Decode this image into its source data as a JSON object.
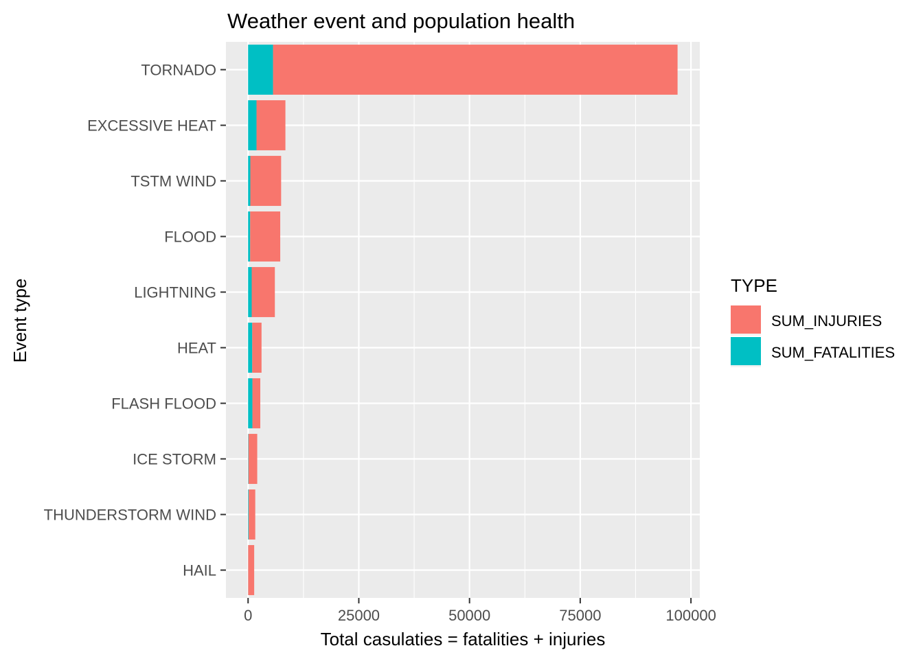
{
  "chart_data": {
    "type": "bar",
    "orientation": "horizontal",
    "stacked": true,
    "title": "Weather event and population health",
    "xlabel": "Total casulaties = fatalities + injuries",
    "ylabel": "Event type",
    "xlim": [
      -5000,
      102000
    ],
    "x_ticks": [
      "0",
      "25000",
      "50000",
      "75000",
      "100000"
    ],
    "x_tick_values": [
      0,
      25000,
      50000,
      75000,
      100000
    ],
    "grid": true,
    "legend_position": "right",
    "legend_title": "TYPE",
    "categories": [
      "TORNADO",
      "EXCESSIVE HEAT",
      "TSTM WIND",
      "FLOOD",
      "LIGHTNING",
      "HEAT",
      "FLASH FLOOD",
      "ICE STORM",
      "THUNDERSTORM WIND",
      "HAIL"
    ],
    "series": [
      {
        "name": "SUM_FATALITIES",
        "color": "#00BFC4",
        "values": [
          5633,
          1903,
          504,
          470,
          816,
          937,
          978,
          89,
          133,
          15
        ]
      },
      {
        "name": "SUM_INJURIES",
        "color": "#F8766D",
        "values": [
          91346,
          6525,
          6957,
          6789,
          5230,
          2100,
          1777,
          1975,
          1488,
          1361
        ]
      }
    ]
  }
}
